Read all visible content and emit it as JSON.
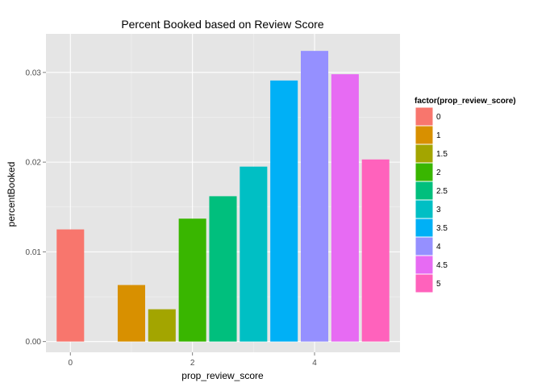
{
  "chart_data": {
    "type": "bar",
    "title": "Percent Booked based on Review Score",
    "xlabel": "prop_review_score",
    "ylabel": "percentBooked",
    "x": [
      0,
      1,
      1.5,
      2,
      2.5,
      3,
      3.5,
      4,
      4.5,
      5
    ],
    "values": [
      0.0125,
      0.0063,
      0.0036,
      0.0137,
      0.0162,
      0.0195,
      0.0291,
      0.0324,
      0.0298,
      0.0203
    ],
    "xlim": [
      -0.4,
      5.4
    ],
    "ylim": [
      -0.0012,
      0.0343
    ],
    "x_ticks": [
      0,
      2,
      4
    ],
    "y_ticks": [
      0,
      0.01,
      0.02,
      0.03
    ],
    "x_tick_labels": [
      "0",
      "2",
      "4"
    ],
    "y_tick_labels": [
      "0.00",
      "0.01",
      "0.02",
      "0.03"
    ],
    "grid": true,
    "background": "#e5e5e5",
    "legend": {
      "title": "factor(prop_review_score)",
      "position": "right",
      "entries": [
        {
          "label": "0",
          "color": "#F8766D"
        },
        {
          "label": "1",
          "color": "#D89000"
        },
        {
          "label": "1.5",
          "color": "#A3A500"
        },
        {
          "label": "2",
          "color": "#39B600"
        },
        {
          "label": "2.5",
          "color": "#00BF7D"
        },
        {
          "label": "3",
          "color": "#00BFC4"
        },
        {
          "label": "3.5",
          "color": "#00B0F6"
        },
        {
          "label": "4",
          "color": "#9590FF"
        },
        {
          "label": "4.5",
          "color": "#E76BF3"
        },
        {
          "label": "5",
          "color": "#FF62BC"
        }
      ]
    }
  }
}
